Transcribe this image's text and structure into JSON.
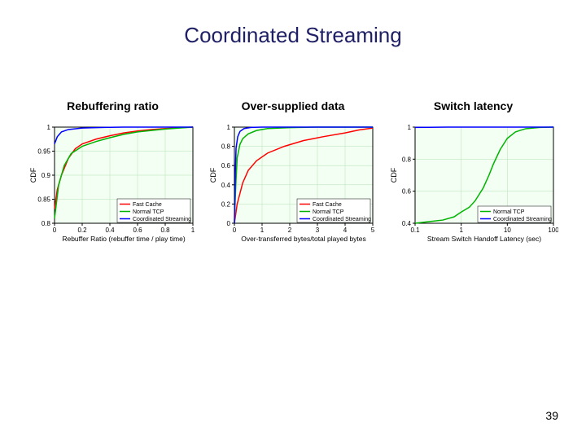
{
  "title": "Coordinated Streaming",
  "page_number": "39",
  "colors": {
    "bg": "#ffffff",
    "title": "#1f1f66",
    "text": "#000000",
    "plot_bg": "#f2fff2",
    "axis": "#000000",
    "grid": "#b5e0b5",
    "fast_cache": "#ff0000",
    "normal_tcp": "#00b300",
    "coord_stream": "#0000ff"
  },
  "charts": [
    {
      "heading": "Rebuffering ratio",
      "xlabel": "Rebuffer Ratio (rebuffer time / play time)",
      "ylabel": "CDF",
      "xlim": [
        0,
        1
      ],
      "ylim": [
        0.8,
        1.0
      ],
      "xticks": [
        0,
        0.2,
        0.4,
        0.6,
        0.8,
        1
      ],
      "yticks": [
        0.8,
        0.85,
        0.9,
        0.95,
        1
      ],
      "xtick_labels": [
        "0",
        "0.2",
        "0.4",
        "0.6",
        "0.8",
        "1"
      ],
      "ytick_labels": [
        "0.8",
        "0.85",
        "0.9",
        "0.95",
        "1"
      ],
      "xscale": "linear",
      "legend_pos": "bottom-right",
      "legend": [
        "Fast Cache",
        "Normal TCP",
        "Coordinated Streaming"
      ],
      "line_width": 1.5,
      "series": [
        {
          "name": "Fast Cache",
          "color_key": "fast_cache",
          "points": [
            [
              0,
              0.83
            ],
            [
              0.02,
              0.87
            ],
            [
              0.05,
              0.9
            ],
            [
              0.1,
              0.935
            ],
            [
              0.15,
              0.955
            ],
            [
              0.2,
              0.965
            ],
            [
              0.3,
              0.975
            ],
            [
              0.4,
              0.982
            ],
            [
              0.5,
              0.988
            ],
            [
              0.6,
              0.992
            ],
            [
              0.7,
              0.995
            ],
            [
              0.8,
              0.997
            ],
            [
              0.9,
              0.999
            ],
            [
              1,
              1
            ]
          ]
        },
        {
          "name": "Normal TCP",
          "color_key": "normal_tcp",
          "points": [
            [
              0,
              0.81
            ],
            [
              0.03,
              0.88
            ],
            [
              0.07,
              0.92
            ],
            [
              0.12,
              0.945
            ],
            [
              0.2,
              0.96
            ],
            [
              0.3,
              0.97
            ],
            [
              0.4,
              0.978
            ],
            [
              0.5,
              0.985
            ],
            [
              0.6,
              0.99
            ],
            [
              0.7,
              0.993
            ],
            [
              0.8,
              0.996
            ],
            [
              0.9,
              0.998
            ],
            [
              1,
              1
            ]
          ]
        },
        {
          "name": "Coordinated Streaming",
          "color_key": "coord_stream",
          "points": [
            [
              0,
              0.965
            ],
            [
              0.02,
              0.98
            ],
            [
              0.05,
              0.99
            ],
            [
              0.1,
              0.995
            ],
            [
              0.2,
              0.998
            ],
            [
              0.3,
              0.999
            ],
            [
              0.5,
              1
            ],
            [
              1,
              1
            ]
          ]
        }
      ]
    },
    {
      "heading": "Over-supplied data",
      "xlabel": "Over-transferred bytes/total played bytes",
      "ylabel": "CDF",
      "xlim": [
        0,
        5
      ],
      "ylim": [
        0,
        1
      ],
      "xticks": [
        0,
        1,
        2,
        3,
        4,
        5
      ],
      "yticks": [
        0,
        0.2,
        0.4,
        0.6,
        0.8,
        1
      ],
      "xtick_labels": [
        "0",
        "1",
        "2",
        "3",
        "4",
        "5"
      ],
      "ytick_labels": [
        "0",
        "0.2",
        "0.4",
        "0.6",
        "0.8",
        "1"
      ],
      "xscale": "linear",
      "legend_pos": "bottom-right",
      "legend": [
        "Fast Cache",
        "Normal TCP",
        "Coordinated Streaming"
      ],
      "line_width": 1.5,
      "series": [
        {
          "name": "Fast Cache",
          "color_key": "fast_cache",
          "points": [
            [
              0,
              0
            ],
            [
              0.1,
              0.2
            ],
            [
              0.3,
              0.42
            ],
            [
              0.5,
              0.55
            ],
            [
              0.8,
              0.65
            ],
            [
              1.2,
              0.73
            ],
            [
              1.8,
              0.8
            ],
            [
              2.5,
              0.86
            ],
            [
              3.2,
              0.9
            ],
            [
              4,
              0.94
            ],
            [
              4.5,
              0.97
            ],
            [
              5,
              0.99
            ]
          ]
        },
        {
          "name": "Normal TCP",
          "color_key": "normal_tcp",
          "points": [
            [
              0,
              0
            ],
            [
              0.05,
              0.4
            ],
            [
              0.1,
              0.68
            ],
            [
              0.2,
              0.82
            ],
            [
              0.3,
              0.88
            ],
            [
              0.5,
              0.93
            ],
            [
              0.8,
              0.965
            ],
            [
              1.2,
              0.985
            ],
            [
              2,
              0.995
            ],
            [
              3,
              1
            ],
            [
              5,
              1
            ]
          ]
        },
        {
          "name": "Coordinated Streaming",
          "color_key": "coord_stream",
          "points": [
            [
              0,
              0
            ],
            [
              0.03,
              0.5
            ],
            [
              0.06,
              0.78
            ],
            [
              0.12,
              0.9
            ],
            [
              0.2,
              0.955
            ],
            [
              0.35,
              0.985
            ],
            [
              0.6,
              0.997
            ],
            [
              1,
              1
            ],
            [
              5,
              1
            ]
          ]
        }
      ]
    },
    {
      "heading": "Switch latency",
      "xlabel": "Stream Switch Handoff Latency (sec)",
      "ylabel": "CDF",
      "xlim": [
        0.1,
        100
      ],
      "ylim": [
        0.4,
        1
      ],
      "xticks": [
        0.1,
        1,
        10,
        100
      ],
      "yticks": [
        0.4,
        0.6,
        0.8,
        1
      ],
      "xtick_labels": [
        "0.1",
        "1",
        "10",
        "100"
      ],
      "ytick_labels": [
        "0.4",
        "0.6",
        "0.8",
        "1"
      ],
      "xscale": "log",
      "legend_pos": "bottom-right",
      "legend": [
        "Normal TCP",
        "Coordinated Streaming"
      ],
      "line_width": 1.5,
      "series": [
        {
          "name": "Normal TCP",
          "color_key": "normal_tcp",
          "points": [
            [
              0.1,
              0.4
            ],
            [
              0.2,
              0.41
            ],
            [
              0.4,
              0.42
            ],
            [
              0.7,
              0.44
            ],
            [
              1,
              0.47
            ],
            [
              1.5,
              0.5
            ],
            [
              2,
              0.54
            ],
            [
              3,
              0.62
            ],
            [
              4,
              0.7
            ],
            [
              5,
              0.77
            ],
            [
              7,
              0.86
            ],
            [
              10,
              0.93
            ],
            [
              15,
              0.97
            ],
            [
              25,
              0.99
            ],
            [
              50,
              0.998
            ],
            [
              100,
              1
            ]
          ]
        },
        {
          "name": "Coordinated Streaming",
          "color_key": "coord_stream",
          "points": [
            [
              0.1,
              0.998
            ],
            [
              0.2,
              0.999
            ],
            [
              0.5,
              1
            ],
            [
              1,
              1
            ],
            [
              10,
              1
            ],
            [
              100,
              1
            ]
          ]
        }
      ]
    }
  ]
}
